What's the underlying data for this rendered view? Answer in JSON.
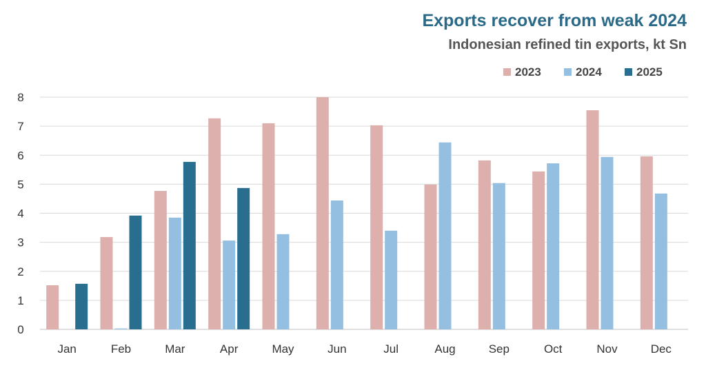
{
  "chart_data": {
    "type": "bar",
    "title": "Exports recover from weak 2024",
    "subtitle": "Indonesian refined tin exports, kt Sn",
    "xlabel": "",
    "ylabel": "",
    "ylim": [
      0,
      8
    ],
    "yticks": [
      0,
      1,
      2,
      3,
      4,
      5,
      6,
      7,
      8
    ],
    "grid": true,
    "legend_position": "top-right",
    "categories": [
      "Jan",
      "Feb",
      "Mar",
      "Apr",
      "May",
      "Jun",
      "Jul",
      "Aug",
      "Sep",
      "Oct",
      "Nov",
      "Dec"
    ],
    "series": [
      {
        "name": "2023",
        "color": "#ddb0ae",
        "values": [
          1.52,
          3.18,
          4.77,
          7.27,
          7.1,
          8.0,
          7.03,
          4.99,
          5.82,
          5.44,
          7.55,
          5.96
        ]
      },
      {
        "name": "2024",
        "color": "#94bfe1",
        "values": [
          null,
          0.03,
          3.85,
          3.06,
          3.28,
          4.44,
          3.4,
          6.44,
          5.04,
          5.72,
          5.94,
          4.68
        ]
      },
      {
        "name": "2025",
        "color": "#2a6e8f",
        "values": [
          1.57,
          3.92,
          5.77,
          4.87,
          null,
          null,
          null,
          null,
          null,
          null,
          null,
          null
        ]
      }
    ]
  }
}
